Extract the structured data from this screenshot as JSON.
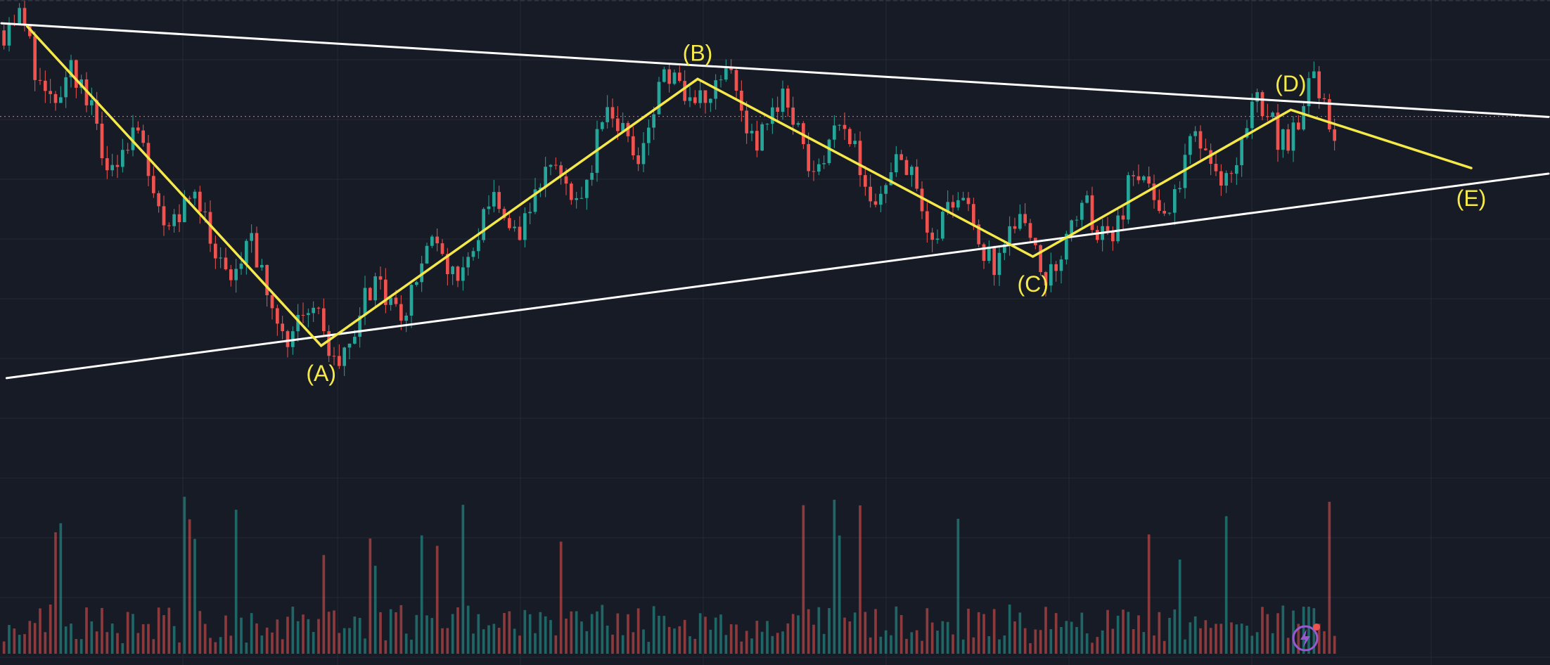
{
  "colors": {
    "background": "#171b26",
    "grid": "#252a37",
    "candle_up": "#26a69a",
    "candle_down": "#ef5350",
    "wave": "#f5e94a",
    "trendline": "#ffffff",
    "price_line": "#e0584e",
    "alert_icon": "#9b59d0",
    "alert_dot": "#ef5350"
  },
  "alert_icon": "lightning-alert-icon",
  "chart_data": {
    "type": "candlestick",
    "title": "",
    "xlabel": "",
    "ylabel": "",
    "grid": true,
    "legend": "none",
    "price_range": [
      0,
      1000
    ],
    "bar_count": 300,
    "current_price_line": 770,
    "wave_points": [
      {
        "label": "",
        "bar": 5,
        "price": 948
      },
      {
        "label": "(A)",
        "bar": 62,
        "price": 317
      },
      {
        "label": "(B)",
        "bar": 135,
        "price": 844
      },
      {
        "label": "(C)",
        "bar": 200,
        "price": 493
      },
      {
        "label": "(D)",
        "bar": 250,
        "price": 783
      },
      {
        "label": "(E)",
        "bar": 285,
        "price": 668
      }
    ],
    "trendlines": [
      {
        "name": "upper",
        "from": {
          "bar": 0,
          "price": 954
        },
        "to": {
          "bar": 300,
          "price": 769
        }
      },
      {
        "name": "lower",
        "from": {
          "bar": 1,
          "price": 253
        },
        "to": {
          "bar": 300,
          "price": 657
        }
      }
    ]
  }
}
